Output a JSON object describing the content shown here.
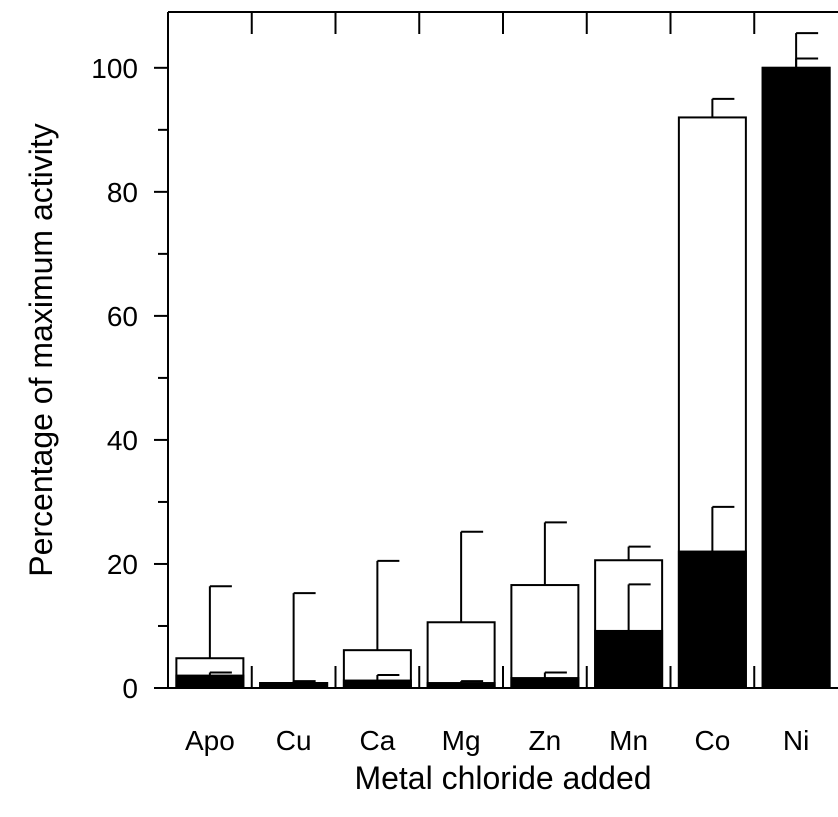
{
  "chart_data": {
    "type": "bar",
    "xlabel": "Metal chloride added",
    "ylabel": "Percentage of maximum activity",
    "categories": [
      "Apo",
      "Cu",
      "Ca",
      "Mg",
      "Zn",
      "Mn",
      "Co",
      "Ni"
    ],
    "ylim": [
      0,
      109
    ],
    "yticks": [
      0,
      20,
      40,
      60,
      80,
      100
    ],
    "yminor_ticks": [
      10,
      30,
      50,
      70,
      90
    ],
    "series": [
      {
        "fill": "#ffffff",
        "values": [
          4.8,
          0.8,
          6.1,
          10.6,
          16.6,
          20.6,
          92,
          100
        ],
        "error_upper": [
          16.4,
          15.3,
          20.5,
          25.2,
          26.7,
          22.8,
          95,
          105.6
        ]
      },
      {
        "fill": "#000000",
        "values": [
          2,
          0.8,
          1.2,
          0.8,
          1.6,
          9.2,
          22,
          100
        ],
        "error_upper": [
          2.5,
          1.1,
          2.1,
          1.1,
          2.5,
          16.7,
          29.2,
          101.5
        ]
      }
    ]
  }
}
